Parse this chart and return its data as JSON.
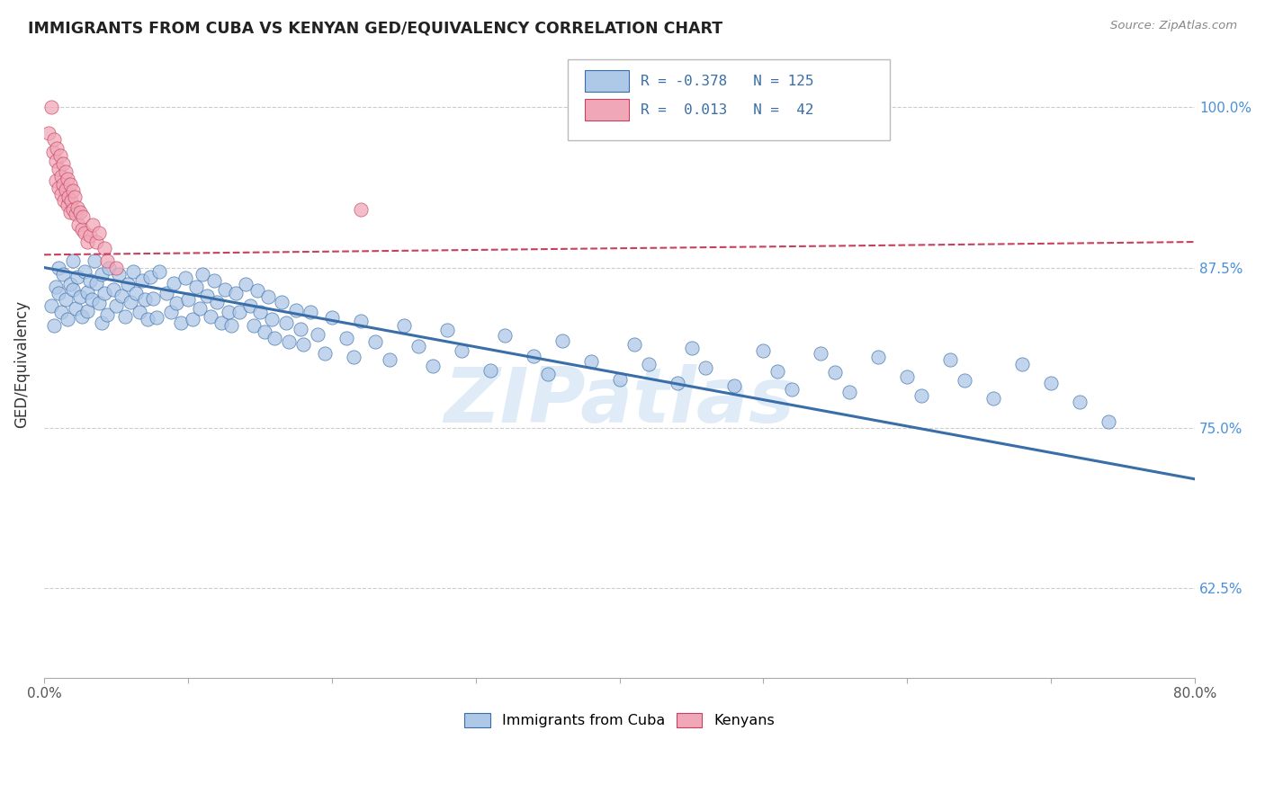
{
  "title": "IMMIGRANTS FROM CUBA VS KENYAN GED/EQUIVALENCY CORRELATION CHART",
  "source": "Source: ZipAtlas.com",
  "ylabel": "GED/Equivalency",
  "ytick_labels": [
    "62.5%",
    "75.0%",
    "87.5%",
    "100.0%"
  ],
  "ytick_values": [
    0.625,
    0.75,
    0.875,
    1.0
  ],
  "xlim": [
    0.0,
    0.8
  ],
  "ylim": [
    0.555,
    1.045
  ],
  "blue_color": "#aec8e8",
  "pink_color": "#f0a8b8",
  "trendline_blue": "#3a6ea8",
  "trendline_pink": "#c84060",
  "blue_scatter_x": [
    0.005,
    0.007,
    0.008,
    0.01,
    0.01,
    0.012,
    0.013,
    0.015,
    0.016,
    0.018,
    0.02,
    0.02,
    0.022,
    0.023,
    0.025,
    0.026,
    0.028,
    0.03,
    0.03,
    0.032,
    0.033,
    0.035,
    0.036,
    0.038,
    0.04,
    0.04,
    0.042,
    0.044,
    0.045,
    0.048,
    0.05,
    0.052,
    0.054,
    0.056,
    0.058,
    0.06,
    0.062,
    0.064,
    0.066,
    0.068,
    0.07,
    0.072,
    0.074,
    0.076,
    0.078,
    0.08,
    0.085,
    0.088,
    0.09,
    0.092,
    0.095,
    0.098,
    0.1,
    0.103,
    0.106,
    0.108,
    0.11,
    0.113,
    0.116,
    0.118,
    0.12,
    0.123,
    0.126,
    0.128,
    0.13,
    0.133,
    0.136,
    0.14,
    0.143,
    0.146,
    0.148,
    0.15,
    0.153,
    0.156,
    0.158,
    0.16,
    0.165,
    0.168,
    0.17,
    0.175,
    0.178,
    0.18,
    0.185,
    0.19,
    0.195,
    0.2,
    0.21,
    0.215,
    0.22,
    0.23,
    0.24,
    0.25,
    0.26,
    0.27,
    0.28,
    0.29,
    0.31,
    0.32,
    0.34,
    0.35,
    0.36,
    0.38,
    0.4,
    0.41,
    0.42,
    0.44,
    0.45,
    0.46,
    0.48,
    0.5,
    0.51,
    0.52,
    0.54,
    0.55,
    0.56,
    0.58,
    0.6,
    0.61,
    0.63,
    0.64,
    0.66,
    0.68,
    0.7,
    0.72,
    0.74
  ],
  "blue_scatter_y": [
    0.845,
    0.83,
    0.86,
    0.875,
    0.855,
    0.84,
    0.87,
    0.85,
    0.835,
    0.862,
    0.88,
    0.858,
    0.843,
    0.868,
    0.852,
    0.837,
    0.872,
    0.856,
    0.841,
    0.865,
    0.85,
    0.88,
    0.863,
    0.847,
    0.832,
    0.87,
    0.855,
    0.838,
    0.875,
    0.858,
    0.845,
    0.87,
    0.853,
    0.837,
    0.862,
    0.848,
    0.872,
    0.855,
    0.84,
    0.865,
    0.85,
    0.835,
    0.868,
    0.851,
    0.836,
    0.872,
    0.855,
    0.84,
    0.863,
    0.847,
    0.832,
    0.867,
    0.85,
    0.835,
    0.86,
    0.843,
    0.87,
    0.853,
    0.837,
    0.865,
    0.848,
    0.832,
    0.858,
    0.84,
    0.83,
    0.855,
    0.84,
    0.862,
    0.845,
    0.83,
    0.857,
    0.84,
    0.825,
    0.852,
    0.835,
    0.82,
    0.848,
    0.832,
    0.817,
    0.842,
    0.827,
    0.815,
    0.84,
    0.823,
    0.808,
    0.836,
    0.82,
    0.805,
    0.833,
    0.817,
    0.803,
    0.83,
    0.814,
    0.798,
    0.826,
    0.81,
    0.795,
    0.822,
    0.806,
    0.792,
    0.818,
    0.802,
    0.788,
    0.815,
    0.8,
    0.785,
    0.812,
    0.797,
    0.783,
    0.81,
    0.794,
    0.78,
    0.808,
    0.793,
    0.778,
    0.805,
    0.79,
    0.775,
    0.803,
    0.787,
    0.773,
    0.8,
    0.785,
    0.77,
    0.755
  ],
  "pink_scatter_x": [
    0.003,
    0.005,
    0.006,
    0.007,
    0.008,
    0.008,
    0.009,
    0.01,
    0.01,
    0.011,
    0.012,
    0.012,
    0.013,
    0.013,
    0.014,
    0.015,
    0.015,
    0.016,
    0.016,
    0.017,
    0.018,
    0.018,
    0.019,
    0.02,
    0.02,
    0.021,
    0.022,
    0.023,
    0.024,
    0.025,
    0.026,
    0.027,
    0.028,
    0.03,
    0.032,
    0.034,
    0.036,
    0.038,
    0.042,
    0.044,
    0.05,
    0.22
  ],
  "pink_scatter_y": [
    0.98,
    1.0,
    0.965,
    0.975,
    0.958,
    0.943,
    0.968,
    0.952,
    0.937,
    0.962,
    0.946,
    0.932,
    0.956,
    0.94,
    0.927,
    0.95,
    0.936,
    0.924,
    0.944,
    0.93,
    0.918,
    0.94,
    0.927,
    0.935,
    0.92,
    0.93,
    0.917,
    0.922,
    0.908,
    0.918,
    0.905,
    0.915,
    0.902,
    0.895,
    0.9,
    0.908,
    0.895,
    0.902,
    0.89,
    0.88,
    0.875,
    0.92
  ],
  "blue_trend_x": [
    0.0,
    0.8
  ],
  "blue_trend_y": [
    0.875,
    0.71
  ],
  "pink_trend_x": [
    0.0,
    0.8
  ],
  "pink_trend_y": [
    0.885,
    0.895
  ],
  "watermark": "ZIPatlas"
}
